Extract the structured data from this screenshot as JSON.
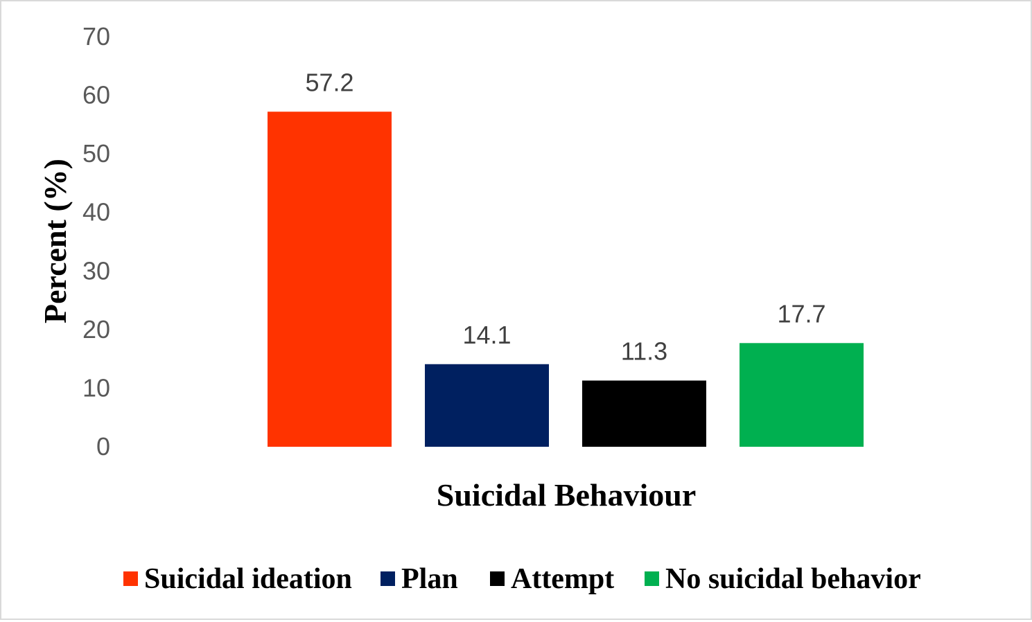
{
  "chart_data": {
    "type": "bar",
    "categories": [
      "Suicidal ideation",
      "Plan",
      "Attempt",
      "No suicidal behavior"
    ],
    "values": [
      57.2,
      14.1,
      11.3,
      17.7
    ],
    "data_labels": [
      "57.2",
      "14.1",
      "11.3",
      "17.7"
    ],
    "colors": [
      "#ff3300",
      "#002060",
      "#000000",
      "#00b050"
    ],
    "xlabel": "Suicidal Behaviour",
    "ylabel": "Percent (%)",
    "ylim": [
      0,
      70
    ],
    "yticks": [
      "0",
      "10",
      "20",
      "30",
      "40",
      "50",
      "60",
      "70"
    ],
    "grid": false,
    "legend_position": "bottom"
  }
}
